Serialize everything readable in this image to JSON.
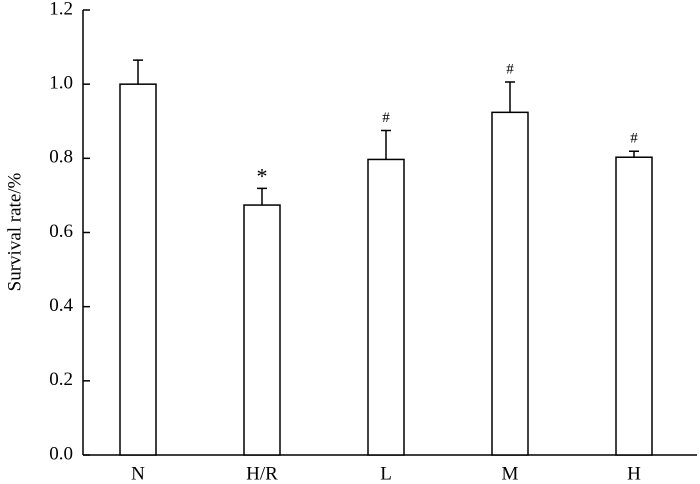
{
  "chart_data": {
    "type": "bar",
    "y_label": "Survival rate/%",
    "categories": [
      "N",
      "H/R",
      "L",
      "M",
      "H"
    ],
    "values": [
      1.0,
      0.674,
      0.797,
      0.924,
      0.803
    ],
    "errors": [
      0.065,
      0.045,
      0.078,
      0.082,
      0.016
    ],
    "annotations": [
      null,
      "*",
      "#",
      "#",
      "#"
    ],
    "color": "#ffffff",
    "ylim": [
      0,
      1.2
    ],
    "yticks": [
      {
        "value": 0,
        "label": "0.0"
      },
      0.2,
      0.4,
      0.6,
      0.8,
      {
        "value": 1,
        "label": "1.0"
      },
      1.2
    ]
  }
}
